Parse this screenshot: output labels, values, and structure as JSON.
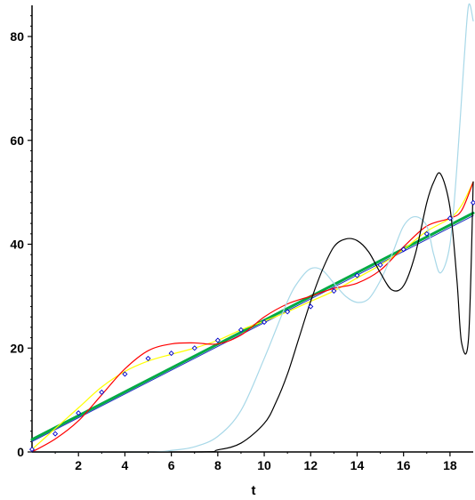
{
  "chart_data": {
    "type": "line",
    "title": "",
    "xlabel": "t",
    "ylabel": "",
    "xlim": [
      0,
      19
    ],
    "ylim": [
      0,
      86
    ],
    "x_ticks": [
      2,
      4,
      6,
      8,
      10,
      12,
      14,
      16,
      18
    ],
    "y_ticks": [
      0,
      20,
      40,
      60,
      80
    ],
    "grid": false,
    "legend": "none",
    "data_points": {
      "marker": "diamond",
      "color": "#0000cc",
      "x": [
        0,
        1,
        2,
        3,
        4,
        5,
        6,
        7,
        8,
        9,
        10,
        11,
        12,
        13,
        14,
        15,
        16,
        17,
        18,
        19
      ],
      "y": [
        0.5,
        3.5,
        7.5,
        11.5,
        15,
        18,
        19,
        20,
        21.5,
        23.5,
        25,
        27,
        28,
        31,
        34,
        36,
        39,
        42,
        45,
        48
      ]
    },
    "series": [
      {
        "color": "#00aa44",
        "style": "thick",
        "x": [
          0,
          19
        ],
        "y": [
          2.4,
          46
        ]
      },
      {
        "color": "#1f2fbf",
        "style": "thin",
        "x": [
          0,
          19
        ],
        "y": [
          2.0,
          45.5
        ]
      },
      {
        "color": "#ffff00",
        "x": [
          0,
          1,
          2,
          3,
          4,
          5,
          6,
          7,
          8,
          9,
          10,
          11,
          12,
          13,
          14,
          15,
          16,
          17,
          18,
          18.5,
          19
        ],
        "y": [
          0.5,
          4.5,
          8.5,
          12.5,
          15.5,
          17.5,
          18.8,
          20,
          21.5,
          23.5,
          25.2,
          27,
          29,
          31,
          33.5,
          36,
          39,
          42.5,
          45,
          47.5,
          52
        ]
      },
      {
        "color": "#ff0000",
        "x": [
          0,
          1,
          2,
          3,
          4,
          5,
          6,
          7,
          8,
          9,
          10,
          11,
          12,
          13,
          14,
          15,
          16,
          17,
          18,
          18.5,
          19
        ],
        "y": [
          0,
          2.5,
          6,
          11,
          16,
          19.5,
          20.8,
          21,
          20.8,
          22.5,
          26,
          28.5,
          30,
          31.5,
          32.5,
          35,
          39.5,
          43.5,
          45,
          46.5,
          52
        ]
      },
      {
        "color": "#a8d8e8",
        "x": [
          0,
          5,
          6,
          7,
          8,
          9,
          10,
          11,
          11.5,
          12,
          12.5,
          13,
          13.5,
          14,
          14.5,
          15,
          15.5,
          16,
          16.5,
          17,
          17.3,
          17.6,
          18,
          18.3,
          18.6,
          18.8,
          19
        ],
        "y": [
          0,
          0,
          0.3,
          1,
          3,
          8,
          18,
          29,
          33,
          35.3,
          35,
          32.5,
          30,
          28.8,
          29.5,
          33,
          38,
          43.5,
          45.3,
          43.5,
          38,
          34.5,
          40,
          55,
          75,
          86,
          83
        ]
      },
      {
        "color": "#000000",
        "x": [
          0,
          7,
          8,
          9,
          10,
          10.5,
          11,
          11.5,
          12,
          12.5,
          13,
          13.5,
          14,
          14.5,
          15,
          15.5,
          16,
          16.5,
          17,
          17.3,
          17.6,
          18,
          18.3,
          18.5,
          18.8,
          19
        ],
        "y": [
          0,
          0,
          0.4,
          1.7,
          5.5,
          9.5,
          15,
          22,
          29,
          35,
          39.5,
          41,
          40.7,
          38.5,
          34.5,
          31.2,
          32,
          38,
          48,
          52,
          53.5,
          47,
          33,
          21,
          22,
          52
        ]
      }
    ]
  }
}
